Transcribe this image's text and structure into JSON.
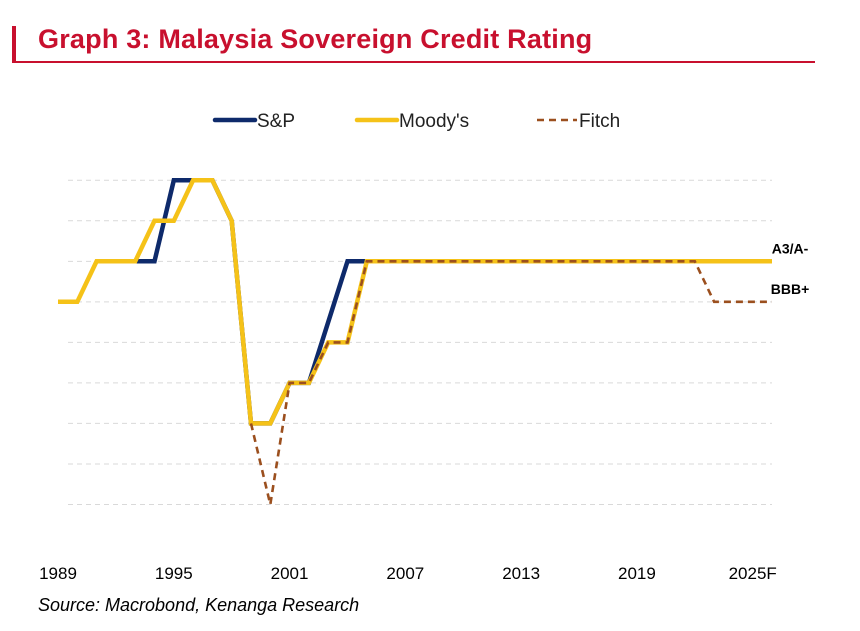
{
  "page": {
    "title": "Graph 3: Malaysia Sovereign Credit Rating",
    "source": "Source:  Macrobond, Kenanga Research"
  },
  "colors": {
    "title": "#c8102e",
    "sp": "#0e2a6b",
    "moodys": "#f5c218",
    "fitch": "#9b4f1e",
    "grid": "#d9d9d9"
  },
  "chart_data": {
    "type": "line",
    "title": "",
    "xlabel": "",
    "ylabel": "",
    "xlim": [
      1989,
      2026
    ],
    "ylim": [
      0,
      9.5
    ],
    "x_ticks": [
      1989,
      1995,
      2001,
      2007,
      2013,
      2019,
      2025
    ],
    "x_tick_labels": [
      "1989",
      "1995",
      "2001",
      "2007",
      "2013",
      "2019",
      "2025F"
    ],
    "grid": "horizontal dashed",
    "legend": "top",
    "series": [
      {
        "name": "S&P",
        "style": "solid",
        "points": [
          [
            1991,
            7
          ],
          [
            1993,
            7
          ],
          [
            1994,
            7
          ],
          [
            1995,
            9
          ],
          [
            1997,
            9
          ],
          [
            1998,
            8
          ],
          [
            1999,
            3
          ],
          [
            2000,
            3
          ],
          [
            2001,
            4
          ],
          [
            2002,
            4
          ],
          [
            2004,
            7
          ],
          [
            2026,
            7
          ]
        ]
      },
      {
        "name": "Moody's",
        "style": "solid",
        "points": [
          [
            1989,
            6
          ],
          [
            1990,
            6
          ],
          [
            1991,
            7
          ],
          [
            1993,
            7
          ],
          [
            1994,
            8
          ],
          [
            1995,
            8
          ],
          [
            1996,
            9
          ],
          [
            1997,
            9
          ],
          [
            1998,
            8
          ],
          [
            1999,
            3
          ],
          [
            2000,
            3
          ],
          [
            2001,
            4
          ],
          [
            2002,
            4
          ],
          [
            2003,
            5
          ],
          [
            2004,
            5
          ],
          [
            2005,
            7
          ],
          [
            2026,
            7
          ]
        ]
      },
      {
        "name": "Fitch",
        "style": "dashed",
        "points": [
          [
            1999,
            3
          ],
          [
            2000,
            1
          ],
          [
            2001,
            4
          ],
          [
            2002,
            4
          ],
          [
            2003,
            5
          ],
          [
            2004,
            5
          ],
          [
            2005,
            7
          ],
          [
            2022,
            7
          ],
          [
            2023,
            6
          ],
          [
            2026,
            6
          ]
        ]
      }
    ],
    "annotations": [
      {
        "text": "A3/A-",
        "y": 7
      },
      {
        "text": "BBB+",
        "y": 6
      }
    ]
  }
}
